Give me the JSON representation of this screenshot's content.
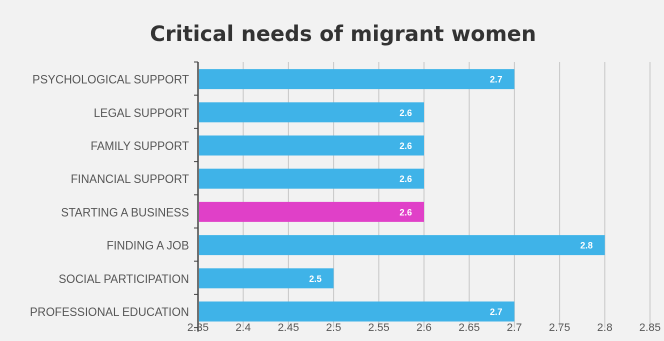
{
  "chart_data": {
    "type": "bar",
    "orientation": "horizontal",
    "title": "Critical needs of migrant women",
    "xlabel": "",
    "ylabel": "",
    "categories": [
      "PSYCHOLOGICAL SUPPORT",
      "LEGAL SUPPORT",
      "FAMILY SUPPORT",
      "FINANCIAL SUPPORT",
      "STARTING A BUSINESS",
      "FINDING A JOB",
      "SOCIAL PARTICIPATION",
      "PROFESSIONAL EDUCATION"
    ],
    "values": [
      2.7,
      2.6,
      2.6,
      2.6,
      2.6,
      2.8,
      2.5,
      2.7
    ],
    "value_labels": [
      "2.7",
      "2.6",
      "2.6",
      "2.6",
      "2.6",
      "2.8",
      "2.5",
      "2.7"
    ],
    "highlight_index": 4,
    "xlim": [
      2.35,
      2.85
    ],
    "xticks": [
      2.35,
      2.4,
      2.45,
      2.5,
      2.55,
      2.6,
      2.65,
      2.7,
      2.75,
      2.8,
      2.85
    ],
    "xtick_labels": [
      "2.35",
      "2.4",
      "2.45",
      "2.5",
      "2.55",
      "2.6",
      "2.65",
      "2.7",
      "2.75",
      "2.8",
      "2.85"
    ],
    "grid": true,
    "legend": "none",
    "colors": {
      "bar": "#3fb3e8",
      "highlight": "#e040c8",
      "background": "#f2f2f2",
      "grid": "#c8c8c8",
      "text": "#555555",
      "title": "#333333"
    }
  }
}
